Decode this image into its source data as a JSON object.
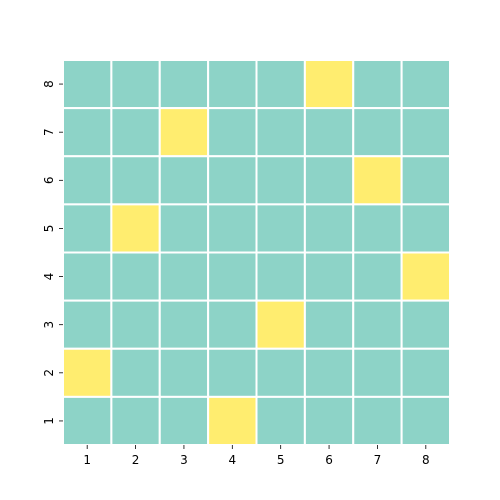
{
  "chart_data": {
    "type": "heatmap",
    "title": "",
    "xlabel": "",
    "ylabel": "",
    "x_tick_labels": [
      "1",
      "2",
      "3",
      "4",
      "5",
      "6",
      "7",
      "8"
    ],
    "y_tick_labels": [
      "8",
      "7",
      "6",
      "5",
      "4",
      "3",
      "2",
      "1"
    ],
    "colors": {
      "empty": "#8dd3c7",
      "marked": "#ffed6f",
      "gridline": "#ffffff"
    },
    "grid": true,
    "cells": [
      [
        0,
        0,
        0,
        0,
        0,
        1,
        0,
        0
      ],
      [
        0,
        0,
        1,
        0,
        0,
        0,
        0,
        0
      ],
      [
        0,
        0,
        0,
        0,
        0,
        0,
        1,
        0
      ],
      [
        0,
        1,
        0,
        0,
        0,
        0,
        0,
        0
      ],
      [
        0,
        0,
        0,
        0,
        0,
        0,
        0,
        1
      ],
      [
        0,
        0,
        0,
        0,
        1,
        0,
        0,
        0
      ],
      [
        1,
        0,
        0,
        0,
        0,
        0,
        0,
        0
      ],
      [
        0,
        0,
        0,
        1,
        0,
        0,
        0,
        0
      ]
    ]
  }
}
